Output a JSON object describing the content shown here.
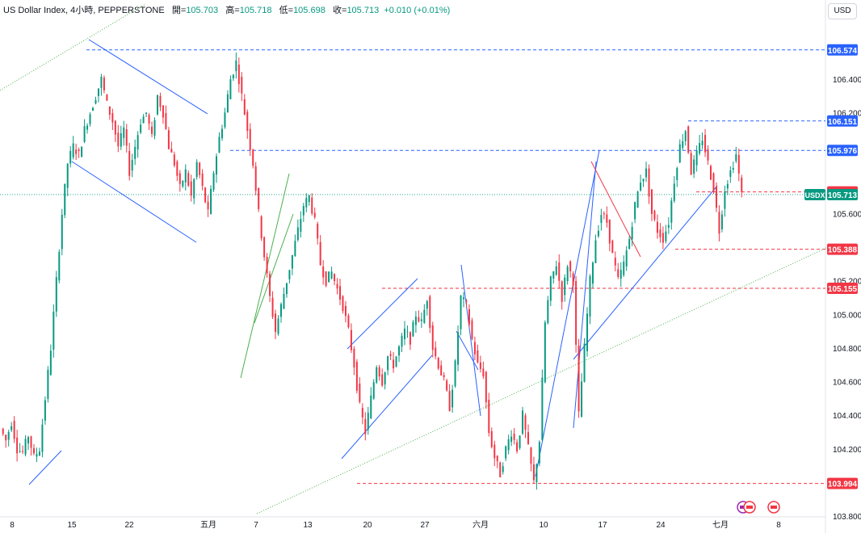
{
  "header": {
    "symbol": "US Dollar Index, 4小時, PEPPERSTONE",
    "open_label": "開=",
    "open": "105.703",
    "high_label": "高=",
    "high": "105.718",
    "low_label": "低=",
    "low": "105.698",
    "close_label": "收=",
    "close": "105.713",
    "change": "+0.010 (+0.01%)"
  },
  "currency_button": "USD",
  "colors": {
    "up": "#089981",
    "down": "#f23645",
    "blue_line": "#2962ff",
    "green_line": "#4caf50",
    "red_line": "#f23645"
  },
  "chart_data": {
    "type": "candlestick",
    "timeframe": "4小時",
    "y_ticks": [
      "106.400",
      "106.200",
      "105.600",
      "105.200",
      "105.000",
      "104.800",
      "104.600",
      "104.400",
      "104.200",
      "103.800"
    ],
    "ylim": [
      103.75,
      106.72
    ],
    "x_ticks": [
      "8",
      "15",
      "22",
      "五月",
      "7",
      "13",
      "20",
      "27",
      "六月",
      "10",
      "17",
      "24",
      "七月",
      "8"
    ],
    "price_labels": [
      {
        "text": "106.574",
        "value": 106.574,
        "style": "blue"
      },
      {
        "text": "106.151",
        "value": 106.151,
        "style": "blue"
      },
      {
        "text": "105.976",
        "value": 105.976,
        "style": "blue"
      },
      {
        "text": "105.729",
        "value": 105.729,
        "style": "red"
      },
      {
        "text": "105.388",
        "value": 105.388,
        "style": "red"
      },
      {
        "text": "105.155",
        "value": 105.155,
        "style": "red"
      },
      {
        "text": "103.994",
        "value": 103.994,
        "style": "red"
      }
    ],
    "current": {
      "label": "USDX",
      "value": 105.713,
      "text": "105.713"
    },
    "close_path": [
      [
        0,
        104.32
      ],
      [
        2,
        104.25
      ],
      [
        4,
        104.36
      ],
      [
        6,
        104.2
      ],
      [
        8,
        104.18
      ],
      [
        10,
        104.28
      ],
      [
        12,
        104.15
      ],
      [
        14,
        104.2
      ],
      [
        16,
        104.5
      ],
      [
        18,
        104.8
      ],
      [
        20,
        105.2
      ],
      [
        22,
        105.6
      ],
      [
        24,
        105.9
      ],
      [
        26,
        106.0
      ],
      [
        28,
        105.95
      ],
      [
        30,
        106.1
      ],
      [
        32,
        106.2
      ],
      [
        34,
        106.3
      ],
      [
        36,
        106.4
      ],
      [
        38,
        106.25
      ],
      [
        40,
        106.15
      ],
      [
        42,
        106.0
      ],
      [
        44,
        106.1
      ],
      [
        46,
        105.85
      ],
      [
        48,
        106.0
      ],
      [
        50,
        106.15
      ],
      [
        52,
        106.2
      ],
      [
        54,
        106.05
      ],
      [
        56,
        106.3
      ],
      [
        58,
        106.2
      ],
      [
        60,
        106.0
      ],
      [
        62,
        105.9
      ],
      [
        64,
        105.75
      ],
      [
        66,
        105.85
      ],
      [
        68,
        105.7
      ],
      [
        70,
        105.9
      ],
      [
        72,
        105.75
      ],
      [
        74,
        105.6
      ],
      [
        76,
        105.85
      ],
      [
        78,
        106.05
      ],
      [
        80,
        106.2
      ],
      [
        82,
        106.4
      ],
      [
        84,
        106.5
      ],
      [
        86,
        106.3
      ],
      [
        88,
        106.1
      ],
      [
        90,
        105.9
      ],
      [
        92,
        105.6
      ],
      [
        94,
        105.35
      ],
      [
        96,
        105.1
      ],
      [
        98,
        104.9
      ],
      [
        100,
        105.05
      ],
      [
        102,
        105.2
      ],
      [
        104,
        105.35
      ],
      [
        106,
        105.5
      ],
      [
        108,
        105.65
      ],
      [
        110,
        105.7
      ],
      [
        112,
        105.55
      ],
      [
        114,
        105.3
      ],
      [
        116,
        105.2
      ],
      [
        118,
        105.25
      ],
      [
        120,
        105.15
      ],
      [
        122,
        105.05
      ],
      [
        124,
        104.9
      ],
      [
        126,
        104.7
      ],
      [
        128,
        104.45
      ],
      [
        130,
        104.3
      ],
      [
        132,
        104.5
      ],
      [
        134,
        104.7
      ],
      [
        136,
        104.6
      ],
      [
        138,
        104.75
      ],
      [
        140,
        104.7
      ],
      [
        142,
        104.8
      ],
      [
        144,
        104.9
      ],
      [
        146,
        104.85
      ],
      [
        148,
        105.0
      ],
      [
        150,
        104.95
      ],
      [
        152,
        105.1
      ],
      [
        154,
        104.8
      ],
      [
        156,
        104.7
      ],
      [
        158,
        104.6
      ],
      [
        160,
        104.45
      ],
      [
        162,
        104.7
      ],
      [
        164,
        105.1
      ],
      [
        166,
        105.05
      ],
      [
        168,
        104.85
      ],
      [
        170,
        104.7
      ],
      [
        172,
        104.65
      ],
      [
        174,
        104.3
      ],
      [
        176,
        104.15
      ],
      [
        178,
        104.05
      ],
      [
        180,
        104.2
      ],
      [
        182,
        104.3
      ],
      [
        184,
        104.2
      ],
      [
        186,
        104.4
      ],
      [
        188,
        104.2
      ],
      [
        190,
        104.0
      ],
      [
        192,
        104.25
      ],
      [
        194,
        104.95
      ],
      [
        196,
        105.2
      ],
      [
        198,
        105.3
      ],
      [
        200,
        105.1
      ],
      [
        202,
        105.3
      ],
      [
        204,
        105.2
      ],
      [
        206,
        104.4
      ],
      [
        208,
        104.8
      ],
      [
        210,
        105.2
      ],
      [
        212,
        105.45
      ],
      [
        214,
        105.6
      ],
      [
        216,
        105.55
      ],
      [
        218,
        105.35
      ],
      [
        220,
        105.2
      ],
      [
        222,
        105.3
      ],
      [
        224,
        105.45
      ],
      [
        226,
        105.65
      ],
      [
        228,
        105.8
      ],
      [
        230,
        105.85
      ],
      [
        232,
        105.6
      ],
      [
        234,
        105.5
      ],
      [
        236,
        105.45
      ],
      [
        238,
        105.55
      ],
      [
        240,
        105.8
      ],
      [
        242,
        106.0
      ],
      [
        244,
        106.1
      ],
      [
        246,
        105.85
      ],
      [
        248,
        105.95
      ],
      [
        250,
        106.05
      ],
      [
        252,
        105.9
      ],
      [
        254,
        105.75
      ],
      [
        256,
        105.5
      ],
      [
        258,
        105.75
      ],
      [
        260,
        105.85
      ],
      [
        262,
        105.95
      ],
      [
        264,
        105.71
      ]
    ],
    "trendlines": [
      {
        "color": "blue_line",
        "from": [
          89,
          200
        ],
        "to": [
          243,
          300
        ]
      },
      {
        "color": "blue_line",
        "from": [
          110,
          49
        ],
        "to": [
          257,
          141
        ]
      },
      {
        "color": "green_line",
        "from": [
          298,
          468
        ],
        "to": [
          358,
          215
        ]
      },
      {
        "color": "green_line",
        "from": [
          315,
          400
        ],
        "to": [
          363,
          265
        ]
      },
      {
        "color": "blue_line",
        "from": [
          430,
          432
        ],
        "to": [
          517,
          345
        ]
      },
      {
        "color": "blue_line",
        "from": [
          423,
          568
        ],
        "to": [
          535,
          440
        ]
      },
      {
        "color": "blue_line",
        "from": [
          571,
          328
        ],
        "to": [
          595,
          515
        ]
      },
      {
        "color": "blue_line",
        "from": [
          565,
          410
        ],
        "to": [
          592,
          458
        ]
      },
      {
        "color": "blue_line",
        "from": [
          663,
          590
        ],
        "to": [
          742,
          186
        ]
      },
      {
        "color": "blue_line",
        "from": [
          710,
          530
        ],
        "to": [
          738,
          200
        ]
      },
      {
        "color": "blue_line",
        "from": [
          710,
          445
        ],
        "to": [
          888,
          230
        ]
      },
      {
        "color": "red_line",
        "from": [
          732,
          200
        ],
        "to": [
          793,
          318
        ]
      },
      {
        "color": "blue_line",
        "from": [
          36,
          600
        ],
        "to": [
          76,
          558
        ]
      },
      {
        "color": "green_line",
        "from": [
          0,
          112
        ],
        "to": [
          180,
          5
        ]
      },
      {
        "color": "green_line",
        "from": [
          318,
          636
        ],
        "to": [
          1025,
          306
        ]
      }
    ]
  }
}
